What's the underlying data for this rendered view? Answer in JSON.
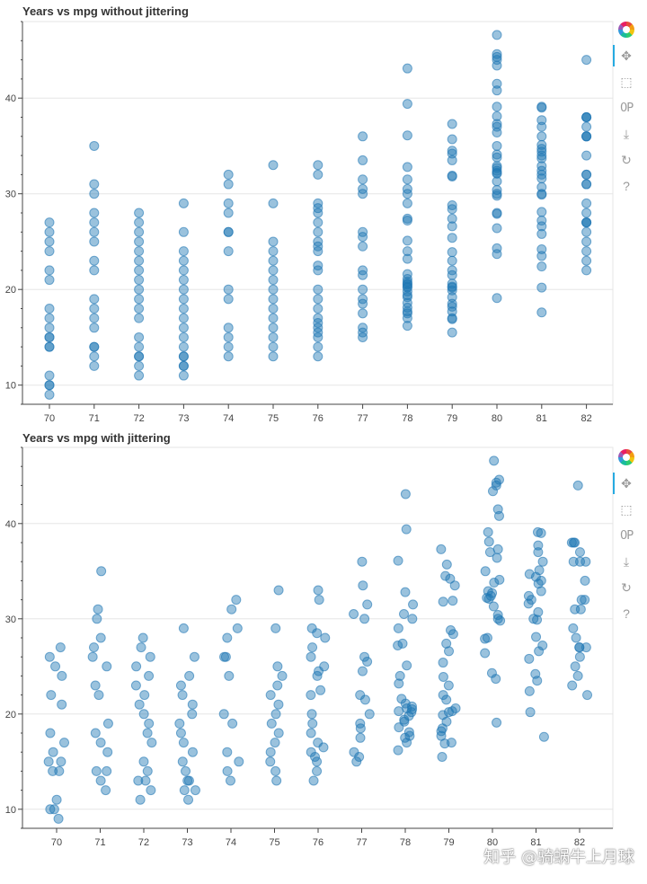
{
  "chart_data": [
    {
      "type": "scatter",
      "title": "Years vs mpg without jittering",
      "x_categories": [
        "70",
        "71",
        "72",
        "73",
        "74",
        "75",
        "76",
        "77",
        "78",
        "79",
        "80",
        "81",
        "82"
      ],
      "ylim": [
        8,
        48
      ],
      "yticks": [
        10,
        20,
        30,
        40
      ],
      "jitter": false,
      "grid": true,
      "point_color": "#1f77b4",
      "points": {
        "70": [
          27,
          26,
          25,
          24,
          22,
          21,
          18,
          17,
          16,
          15,
          15,
          14,
          14,
          11,
          10,
          10,
          9
        ],
        "71": [
          35,
          31,
          30,
          28,
          27,
          26,
          25,
          23,
          22,
          19,
          18,
          17,
          16,
          14,
          14,
          13,
          12
        ],
        "72": [
          28,
          27,
          26,
          25,
          24,
          23,
          22,
          21,
          20,
          19,
          18,
          17,
          15,
          14,
          13,
          13,
          12,
          11
        ],
        "73": [
          29,
          26,
          24,
          23,
          22,
          21,
          20,
          19,
          18,
          17,
          16,
          15,
          14,
          13,
          13,
          12,
          12,
          11
        ],
        "74": [
          32,
          31,
          29,
          28,
          26,
          26,
          24,
          20,
          19,
          16,
          15,
          14,
          13
        ],
        "75": [
          33,
          29,
          25,
          24,
          23,
          22,
          21,
          20,
          19,
          18,
          17,
          16,
          15,
          14,
          13
        ],
        "76": [
          33,
          32,
          29,
          28.5,
          28,
          27,
          26,
          25,
          24.5,
          24,
          22.5,
          22,
          20,
          19,
          18,
          17,
          16.5,
          16,
          15.5,
          15,
          14,
          13
        ],
        "77": [
          36,
          33.5,
          31.5,
          30.5,
          30,
          26,
          25.5,
          24.5,
          22,
          21.5,
          20,
          19,
          18.5,
          17.5,
          16,
          15.5,
          15
        ],
        "78": [
          43.1,
          39.4,
          36.1,
          32.8,
          31.5,
          30.5,
          30,
          29,
          27.4,
          27.2,
          25.1,
          24,
          23.2,
          21.6,
          21.1,
          20.8,
          20.6,
          20.5,
          20.3,
          20.2,
          19.8,
          19.4,
          19.2,
          18.6,
          18.1,
          17.7,
          17.5,
          17,
          16.2
        ],
        "79": [
          37.3,
          35.7,
          34.5,
          34.2,
          33.5,
          31.9,
          31.8,
          28.8,
          28.4,
          27.4,
          26.6,
          25.4,
          23.9,
          23,
          22,
          21.5,
          20.6,
          20.3,
          20.2,
          19.9,
          19.2,
          18.5,
          18.2,
          17.7,
          17,
          16.9,
          15.5
        ],
        "80": [
          46.6,
          44.6,
          44.3,
          44,
          43.4,
          41.5,
          40.8,
          39.1,
          38.1,
          37.3,
          37,
          36.4,
          35,
          34.1,
          33.8,
          32.9,
          32.7,
          32.4,
          32.2,
          32.1,
          31.3,
          30.4,
          30,
          29.8,
          28,
          27.9,
          26.4,
          24.3,
          23.7,
          19.1
        ],
        "81": [
          39.1,
          39,
          37.7,
          37,
          36,
          35.1,
          34.7,
          34.4,
          34,
          33.7,
          32.9,
          32.4,
          32,
          31.6,
          30.7,
          30,
          29.9,
          28.1,
          27.2,
          26.6,
          25.8,
          24.2,
          23.5,
          22.4,
          20.2,
          17.6
        ],
        "82": [
          44,
          38,
          38,
          38,
          37,
          36,
          36,
          36,
          34,
          32,
          32,
          31,
          31,
          29,
          28,
          27,
          27,
          27,
          26,
          25,
          24,
          23,
          22
        ]
      }
    },
    {
      "type": "scatter",
      "title": "Years vs mpg with jittering",
      "x_categories": [
        "70",
        "71",
        "72",
        "73",
        "74",
        "75",
        "76",
        "77",
        "78",
        "79",
        "80",
        "81",
        "82"
      ],
      "ylim": [
        8,
        48
      ],
      "yticks": [
        10,
        20,
        30,
        40
      ],
      "jitter": true,
      "grid": true,
      "point_color": "#1f77b4"
    }
  ],
  "toolbar": {
    "tools": [
      "bokeh-logo-icon",
      "pan-icon",
      "box-zoom-icon",
      "wheel-zoom-icon",
      "save-icon",
      "reset-icon",
      "help-icon"
    ]
  },
  "watermark": "知乎 @骑蜗牛上月球"
}
